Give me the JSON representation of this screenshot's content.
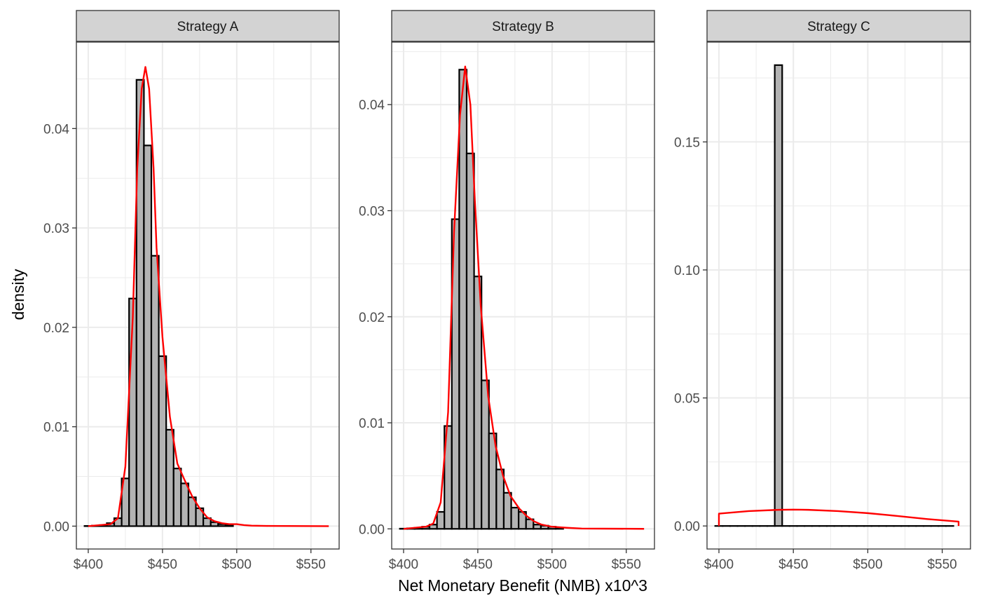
{
  "chart_data": {
    "type": "bar",
    "xlabel": "Net Monetary Benefit (NMB) x10^3",
    "ylabel": "density",
    "xlim": [
      392,
      569
    ],
    "x_ticks": [
      400,
      450,
      500,
      550
    ],
    "x_tick_labels": [
      "$400",
      "$450",
      "$500",
      "$550"
    ],
    "bin_width": 5,
    "colors": {
      "bar_fill": "#b3b3b3",
      "bar_stroke": "#000000",
      "density_line": "#ff0000",
      "strip_fill": "#d3d3d3",
      "grid": "#ebebeb"
    },
    "panels": [
      {
        "title": "Strategy A",
        "ylim": [
          -0.0023,
          0.0487
        ],
        "y_ticks": [
          0,
          0.01,
          0.02,
          0.03,
          0.04
        ],
        "y_tick_labels": [
          "0.00",
          "0.01",
          "0.02",
          "0.03",
          "0.04"
        ],
        "bins": [
          [
            400,
            2e-05
          ],
          [
            405,
            5e-05
          ],
          [
            410,
            0.0001
          ],
          [
            415,
            0.0003
          ],
          [
            420,
            0.0008
          ],
          [
            425,
            0.0048
          ],
          [
            430,
            0.0229
          ],
          [
            435,
            0.0449
          ],
          [
            440,
            0.0383
          ],
          [
            445,
            0.0272
          ],
          [
            450,
            0.0171
          ],
          [
            455,
            0.0097
          ],
          [
            460,
            0.0058
          ],
          [
            465,
            0.0043
          ],
          [
            470,
            0.0029
          ],
          [
            475,
            0.0018
          ],
          [
            480,
            0.0008
          ],
          [
            485,
            0.0004
          ],
          [
            490,
            0.0002
          ],
          [
            495,
            0.0001
          ]
        ],
        "density": [
          [
            400,
            0
          ],
          [
            415,
            0.0002
          ],
          [
            420,
            0.0008
          ],
          [
            425,
            0.006
          ],
          [
            430,
            0.021
          ],
          [
            433,
            0.036
          ],
          [
            436,
            0.044
          ],
          [
            438.5,
            0.0462
          ],
          [
            441,
            0.044
          ],
          [
            444,
            0.036
          ],
          [
            446,
            0.028
          ],
          [
            450,
            0.019
          ],
          [
            455,
            0.011
          ],
          [
            460,
            0.0063
          ],
          [
            465,
            0.0046
          ],
          [
            470,
            0.003
          ],
          [
            475,
            0.0018
          ],
          [
            480,
            0.0009
          ],
          [
            485,
            0.0005
          ],
          [
            490,
            0.0003
          ],
          [
            495,
            0.0002
          ],
          [
            500,
            0.0002
          ],
          [
            505,
            0.0001
          ],
          [
            510,
            5e-05
          ],
          [
            520,
            2e-05
          ],
          [
            562,
            0
          ]
        ]
      },
      {
        "title": "Strategy B",
        "ylim": [
          -0.0019,
          0.0459
        ],
        "y_ticks": [
          0,
          0.01,
          0.02,
          0.03,
          0.04
        ],
        "y_tick_labels": [
          "0.00",
          "0.01",
          "0.02",
          "0.03",
          "0.04"
        ],
        "bins": [
          [
            400,
            2e-05
          ],
          [
            405,
            5e-05
          ],
          [
            410,
            0.0001
          ],
          [
            415,
            0.0002
          ],
          [
            420,
            0.0004
          ],
          [
            425,
            0.0016
          ],
          [
            430,
            0.0097
          ],
          [
            435,
            0.0292
          ],
          [
            440,
            0.0433
          ],
          [
            445,
            0.0354
          ],
          [
            450,
            0.0238
          ],
          [
            455,
            0.014
          ],
          [
            460,
            0.009
          ],
          [
            465,
            0.0056
          ],
          [
            470,
            0.0034
          ],
          [
            475,
            0.002
          ],
          [
            480,
            0.0016
          ],
          [
            485,
            0.0009
          ],
          [
            490,
            0.0004
          ],
          [
            495,
            0.0003
          ],
          [
            500,
            0.0002
          ],
          [
            505,
            0.0001
          ]
        ],
        "density": [
          [
            400,
            0
          ],
          [
            415,
            0.0002
          ],
          [
            420,
            0.0005
          ],
          [
            425,
            0.0025
          ],
          [
            430,
            0.011
          ],
          [
            434,
            0.028
          ],
          [
            438,
            0.039
          ],
          [
            441.5,
            0.0436
          ],
          [
            445,
            0.04
          ],
          [
            448,
            0.031
          ],
          [
            452,
            0.021
          ],
          [
            457,
            0.0125
          ],
          [
            462,
            0.0078
          ],
          [
            467,
            0.005
          ],
          [
            472,
            0.0031
          ],
          [
            478,
            0.0019
          ],
          [
            483,
            0.0012
          ],
          [
            488,
            0.0007
          ],
          [
            493,
            0.0004
          ],
          [
            500,
            0.0002
          ],
          [
            510,
            0.0001
          ],
          [
            520,
            3e-05
          ],
          [
            562,
            0
          ]
        ]
      },
      {
        "title": "Strategy C",
        "ylim": [
          -0.009,
          0.189
        ],
        "y_ticks": [
          0,
          0.05,
          0.1,
          0.15
        ],
        "y_tick_labels": [
          "0.00",
          "0.05",
          "0.10",
          "0.15"
        ],
        "bins": [
          [
            400,
            0
          ],
          [
            405,
            0
          ],
          [
            410,
            0
          ],
          [
            415,
            0
          ],
          [
            420,
            0
          ],
          [
            425,
            0
          ],
          [
            430,
            0
          ],
          [
            435,
            0
          ],
          [
            440,
            0.18
          ],
          [
            445,
            0
          ],
          [
            450,
            0
          ],
          [
            455,
            0
          ],
          [
            460,
            0
          ],
          [
            465,
            0
          ],
          [
            470,
            0
          ],
          [
            475,
            0
          ],
          [
            480,
            0
          ],
          [
            485,
            0
          ],
          [
            490,
            0
          ],
          [
            495,
            0
          ],
          [
            500,
            0
          ],
          [
            505,
            0
          ],
          [
            510,
            0
          ],
          [
            515,
            0
          ],
          [
            520,
            0
          ],
          [
            525,
            0
          ],
          [
            530,
            0
          ],
          [
            535,
            0
          ],
          [
            540,
            0
          ],
          [
            545,
            0
          ],
          [
            550,
            0
          ],
          [
            555,
            0
          ]
        ],
        "density": [
          [
            400,
            0
          ],
          [
            400,
            0.0048
          ],
          [
            420,
            0.0058
          ],
          [
            440,
            0.0063
          ],
          [
            450,
            0.0064
          ],
          [
            460,
            0.0063
          ],
          [
            480,
            0.0058
          ],
          [
            500,
            0.005
          ],
          [
            520,
            0.0039
          ],
          [
            540,
            0.0027
          ],
          [
            561,
            0.0017
          ],
          [
            561,
            0
          ]
        ]
      }
    ]
  }
}
